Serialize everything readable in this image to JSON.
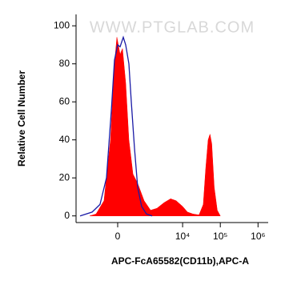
{
  "chart_data": {
    "type": "area",
    "watermark": "WWW.PTGLAB.COM",
    "xlabel": "APC-FcA65582(CD11b),APC-A",
    "ylabel": "Relative Cell Number",
    "xscale": "biexponential",
    "xlim": [
      -2400,
      1860000
    ],
    "xticks": [
      0,
      {
        "value": 10000,
        "label": "10⁴"
      },
      {
        "value": 100000,
        "label": "10⁵"
      },
      {
        "value": 1000000,
        "label": "10⁶"
      }
    ],
    "ylim": [
      -3.5,
      106
    ],
    "yticks": [
      0,
      20,
      40,
      60,
      80,
      100
    ],
    "series": [
      {
        "color": "#ff0000",
        "fill": true,
        "x": [
          -1015,
          -660,
          -355,
          -173,
          -75,
          -19,
          56,
          113,
          193,
          281,
          407,
          590,
          917,
          1387,
          2070,
          3230,
          4790,
          6740,
          9960,
          13500,
          18800,
          27200,
          35300,
          41000,
          47600,
          53200,
          59400,
          69000,
          83000,
          100000
        ],
        "values": [
          0,
          1,
          8,
          40,
          80,
          94,
          85,
          88,
          70,
          40,
          22,
          17,
          8,
          3,
          4,
          7,
          9,
          8,
          5,
          2,
          1,
          0.5,
          6,
          25,
          40,
          43,
          38,
          15,
          3,
          0
        ]
      },
      {
        "color": "#1a1aa6",
        "fill": false,
        "x": [
          -1875,
          -865,
          -494,
          -281,
          -152,
          -75,
          0,
          56,
          133,
          193,
          281,
          353,
          464,
          590,
          775,
          1070,
          1535
        ],
        "values": [
          0,
          2,
          6,
          20,
          55,
          82,
          90,
          89,
          94,
          90,
          80,
          60,
          35,
          15,
          5,
          1,
          0
        ]
      }
    ]
  }
}
